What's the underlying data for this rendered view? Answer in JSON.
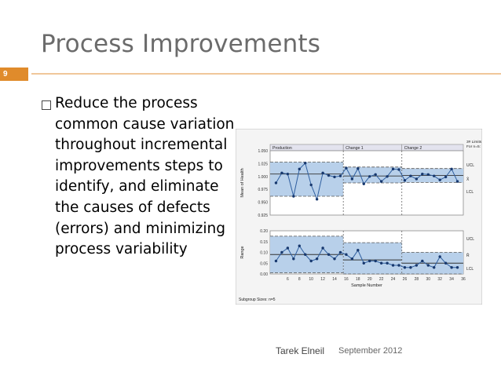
{
  "slide": {
    "title": "Process Improvements",
    "number": "9",
    "bullet": "Reduce the process common cause variation throughout incremental improvements steps to identify, and eliminate the causes of defects (errors) and minimizing process variability",
    "footer_author": "Tarek Elneil",
    "footer_date": "September 2012"
  },
  "chart_data": [
    {
      "type": "line",
      "title": "",
      "ylabel": "Mean of Health",
      "phases": [
        "Production",
        "Change 1",
        "Change 2"
      ],
      "limits_note": [
        "3# Limits",
        "For n=5:"
      ],
      "limit_labels": [
        "UCL",
        "X̄",
        "LCL"
      ],
      "ylim": [
        0.92,
        1.05
      ],
      "yticks": [
        "1.050",
        "1.025",
        "1.000",
        "0.975",
        "0.950",
        "0.925"
      ],
      "x": [
        4,
        5,
        6,
        7,
        8,
        9,
        10,
        11,
        12,
        13,
        14,
        15,
        16,
        17,
        18,
        19,
        20,
        21,
        22,
        23,
        24,
        25,
        26,
        27,
        28,
        29,
        30,
        31,
        32,
        33,
        34,
        35
      ],
      "values": [
        0.985,
        1.005,
        1.003,
        0.958,
        1.013,
        1.025,
        0.981,
        0.952,
        1.005,
        1.0,
        0.997,
        0.999,
        1.015,
        0.993,
        1.014,
        0.983,
        0.998,
        1.002,
        0.988,
        0.998,
        1.013,
        1.012,
        0.99,
        0.999,
        0.993,
        1.003,
        1.002,
        0.999,
        0.991,
        0.997,
        1.013,
        0.988
      ]
    },
    {
      "type": "line",
      "title": "",
      "ylabel": "Range",
      "xlabel": "Sample Number",
      "ylim": [
        0,
        0.2
      ],
      "yticks": [
        "0.20",
        "0.15",
        "0.10",
        "0.05",
        "0.00"
      ],
      "xticks": [
        "6",
        "8",
        "10",
        "12",
        "14",
        "16",
        "18",
        "20",
        "22",
        "24",
        "26",
        "28",
        "30",
        "32",
        "34",
        "36"
      ],
      "x": [
        4,
        5,
        6,
        7,
        8,
        9,
        10,
        11,
        12,
        13,
        14,
        15,
        16,
        17,
        18,
        19,
        20,
        21,
        22,
        23,
        24,
        25,
        26,
        27,
        28,
        29,
        30,
        31,
        32,
        33,
        34,
        35
      ],
      "values": [
        0.06,
        0.1,
        0.12,
        0.07,
        0.13,
        0.09,
        0.06,
        0.07,
        0.12,
        0.09,
        0.07,
        0.1,
        0.09,
        0.07,
        0.11,
        0.05,
        0.06,
        0.06,
        0.05,
        0.05,
        0.04,
        0.04,
        0.03,
        0.03,
        0.04,
        0.06,
        0.04,
        0.03,
        0.08,
        0.05,
        0.03,
        0.03
      ],
      "limit_labels": [
        "UCL",
        "R̄",
        "LCL"
      ],
      "legend": "Subgroup Sizes: n=5"
    }
  ]
}
